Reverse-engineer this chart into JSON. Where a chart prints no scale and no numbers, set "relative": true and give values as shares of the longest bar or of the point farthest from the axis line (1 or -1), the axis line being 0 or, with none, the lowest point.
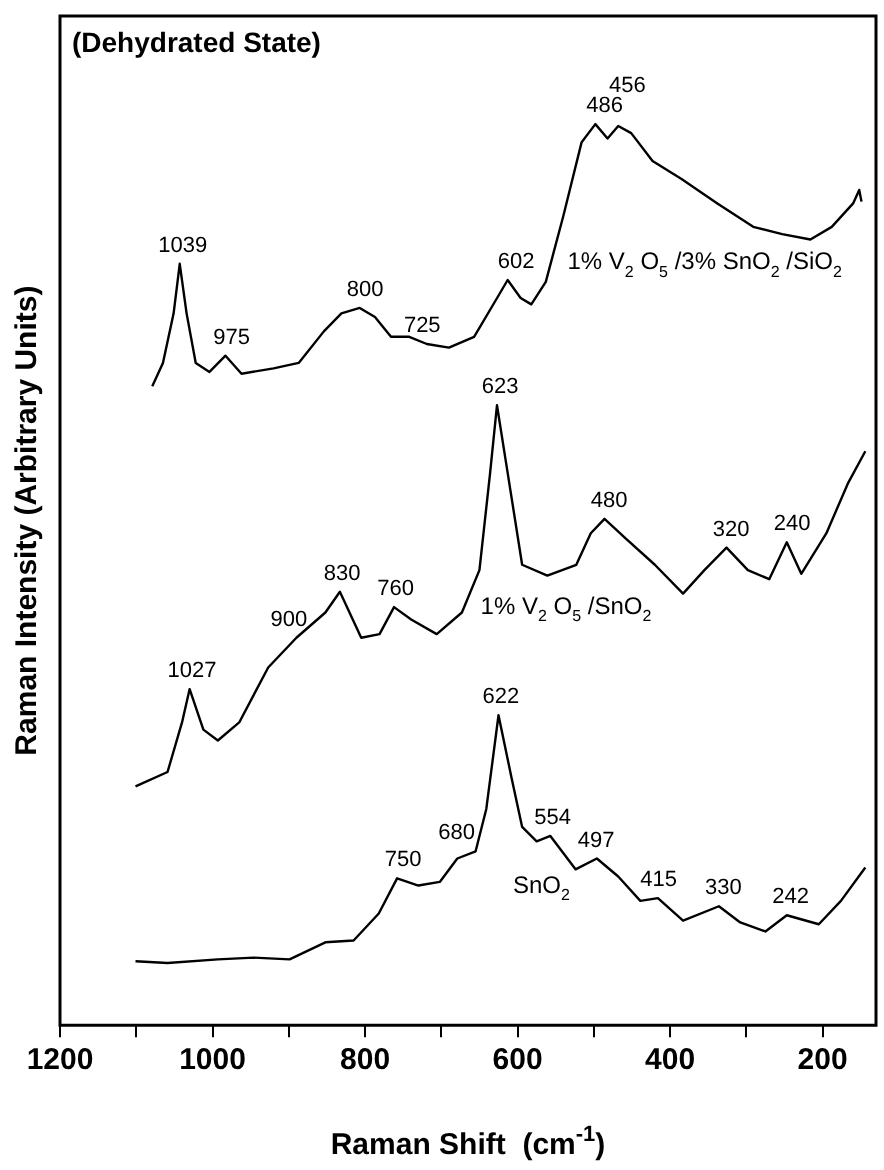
{
  "chart_data": {
    "type": "line",
    "title": "(Dehydrated State)",
    "xlabel": "Raman Shift  (cm$^{-1}$)",
    "ylabel": "Raman Intensity (Arbitrary Units)",
    "relative": true,
    "xlim": [
      1200,
      130
    ],
    "xticks": [
      1200,
      {
        "value": 1100,
        "label": null
      },
      1000,
      {
        "value": 900,
        "label": null
      },
      800,
      {
        "value": 700,
        "label": null
      },
      600,
      {
        "value": 500,
        "label": null
      },
      400,
      {
        "value": 300,
        "label": null
      },
      200
    ],
    "grid": false,
    "legend": false,
    "marker": "none",
    "line_style": "solid",
    "series": [
      {
        "name": "1% V$_{2}$ O$_{5}$ /3% SnO$_{2}$ /SiO$_{2}$",
        "color": "#000000",
        "x": [
          1079,
          1065,
          1051,
          1043,
          1034,
          1022,
          1004,
          983,
          962,
          920,
          887,
          854,
          831,
          807,
          787,
          766,
          742,
          719,
          690,
          657,
          629,
          613,
          596,
          582,
          563,
          540,
          516,
          498,
          482,
          468,
          451,
          423,
          385,
          338,
          291,
          253,
          216,
          188,
          160,
          152,
          149
        ],
        "values": [
          0.709,
          0.735,
          0.79,
          0.845,
          0.79,
          0.735,
          0.725,
          0.743,
          0.723,
          0.729,
          0.735,
          0.77,
          0.79,
          0.796,
          0.786,
          0.764,
          0.764,
          0.756,
          0.752,
          0.764,
          0.804,
          0.827,
          0.807,
          0.8,
          0.825,
          0.898,
          0.98,
          1.0,
          0.984,
          0.998,
          0.99,
          0.959,
          0.939,
          0.912,
          0.886,
          0.878,
          0.872,
          0.886,
          0.912,
          0.927,
          0.914
        ]
      },
      {
        "name": "1% V$_{2}$ O$_{5}$ /SnO$_{2}$",
        "color": "#000000",
        "x": [
          1101,
          1059,
          1040,
          1030,
          1012,
          993,
          965,
          927,
          890,
          852,
          833,
          805,
          781,
          762,
          739,
          706,
          673,
          650,
          636,
          627,
          613,
          594,
          561,
          523,
          504,
          486,
          458,
          420,
          383,
          355,
          326,
          298,
          270,
          247,
          228,
          195,
          167,
          144
        ],
        "values": [
          0.265,
          0.281,
          0.336,
          0.373,
          0.328,
          0.316,
          0.336,
          0.397,
          0.43,
          0.458,
          0.481,
          0.43,
          0.434,
          0.464,
          0.45,
          0.434,
          0.458,
          0.505,
          0.613,
          0.688,
          0.613,
          0.511,
          0.499,
          0.511,
          0.546,
          0.562,
          0.54,
          0.511,
          0.479,
          0.505,
          0.53,
          0.505,
          0.495,
          0.536,
          0.501,
          0.546,
          0.601,
          0.637
        ]
      },
      {
        "name": "SnO$_{2}$",
        "color": "#000000",
        "x": [
          1101,
          1059,
          993,
          946,
          899,
          852,
          815,
          782,
          758,
          730,
          702,
          679,
          655,
          641,
          625,
          608,
          594,
          575,
          557,
          524,
          496,
          468,
          439,
          416,
          383,
          336,
          308,
          275,
          247,
          205,
          176,
          144
        ],
        "values": [
          0.071,
          0.069,
          0.073,
          0.075,
          0.073,
          0.092,
          0.094,
          0.124,
          0.163,
          0.155,
          0.159,
          0.185,
          0.193,
          0.24,
          0.344,
          0.275,
          0.22,
          0.204,
          0.21,
          0.173,
          0.185,
          0.165,
          0.138,
          0.141,
          0.116,
          0.132,
          0.114,
          0.104,
          0.122,
          0.112,
          0.138,
          0.175
        ]
      }
    ],
    "annotations": [
      {
        "text": "1039",
        "x": 1039,
        "y": 0.845
      },
      {
        "text": "975",
        "x": 975,
        "y": 0.743
      },
      {
        "text": "800",
        "x": 800,
        "y": 0.796
      },
      {
        "text": "725",
        "x": 725,
        "y": 0.756
      },
      {
        "text": "602",
        "x": 602,
        "y": 0.827
      },
      {
        "text": "486",
        "x": 486,
        "y": 1.0
      },
      {
        "text": "456",
        "x": 456,
        "y": 0.998
      },
      {
        "text": "1027",
        "x": 1027,
        "y": 0.373
      },
      {
        "text": "900",
        "x": 900,
        "y": 0.43
      },
      {
        "text": "830",
        "x": 830,
        "y": 0.481
      },
      {
        "text": "760",
        "x": 760,
        "y": 0.464
      },
      {
        "text": "623",
        "x": 623,
        "y": 0.688
      },
      {
        "text": "480",
        "x": 480,
        "y": 0.562
      },
      {
        "text": "320",
        "x": 320,
        "y": 0.53
      },
      {
        "text": "240",
        "x": 240,
        "y": 0.536
      },
      {
        "text": "622",
        "x": 622,
        "y": 0.344
      },
      {
        "text": "750",
        "x": 750,
        "y": 0.163
      },
      {
        "text": "680",
        "x": 680,
        "y": 0.193
      },
      {
        "text": "554",
        "x": 554,
        "y": 0.21
      },
      {
        "text": "497",
        "x": 497,
        "y": 0.185
      },
      {
        "text": "415",
        "x": 415,
        "y": 0.141
      },
      {
        "text": "330",
        "x": 330,
        "y": 0.132
      },
      {
        "text": "242",
        "x": 242,
        "y": 0.122
      }
    ]
  }
}
